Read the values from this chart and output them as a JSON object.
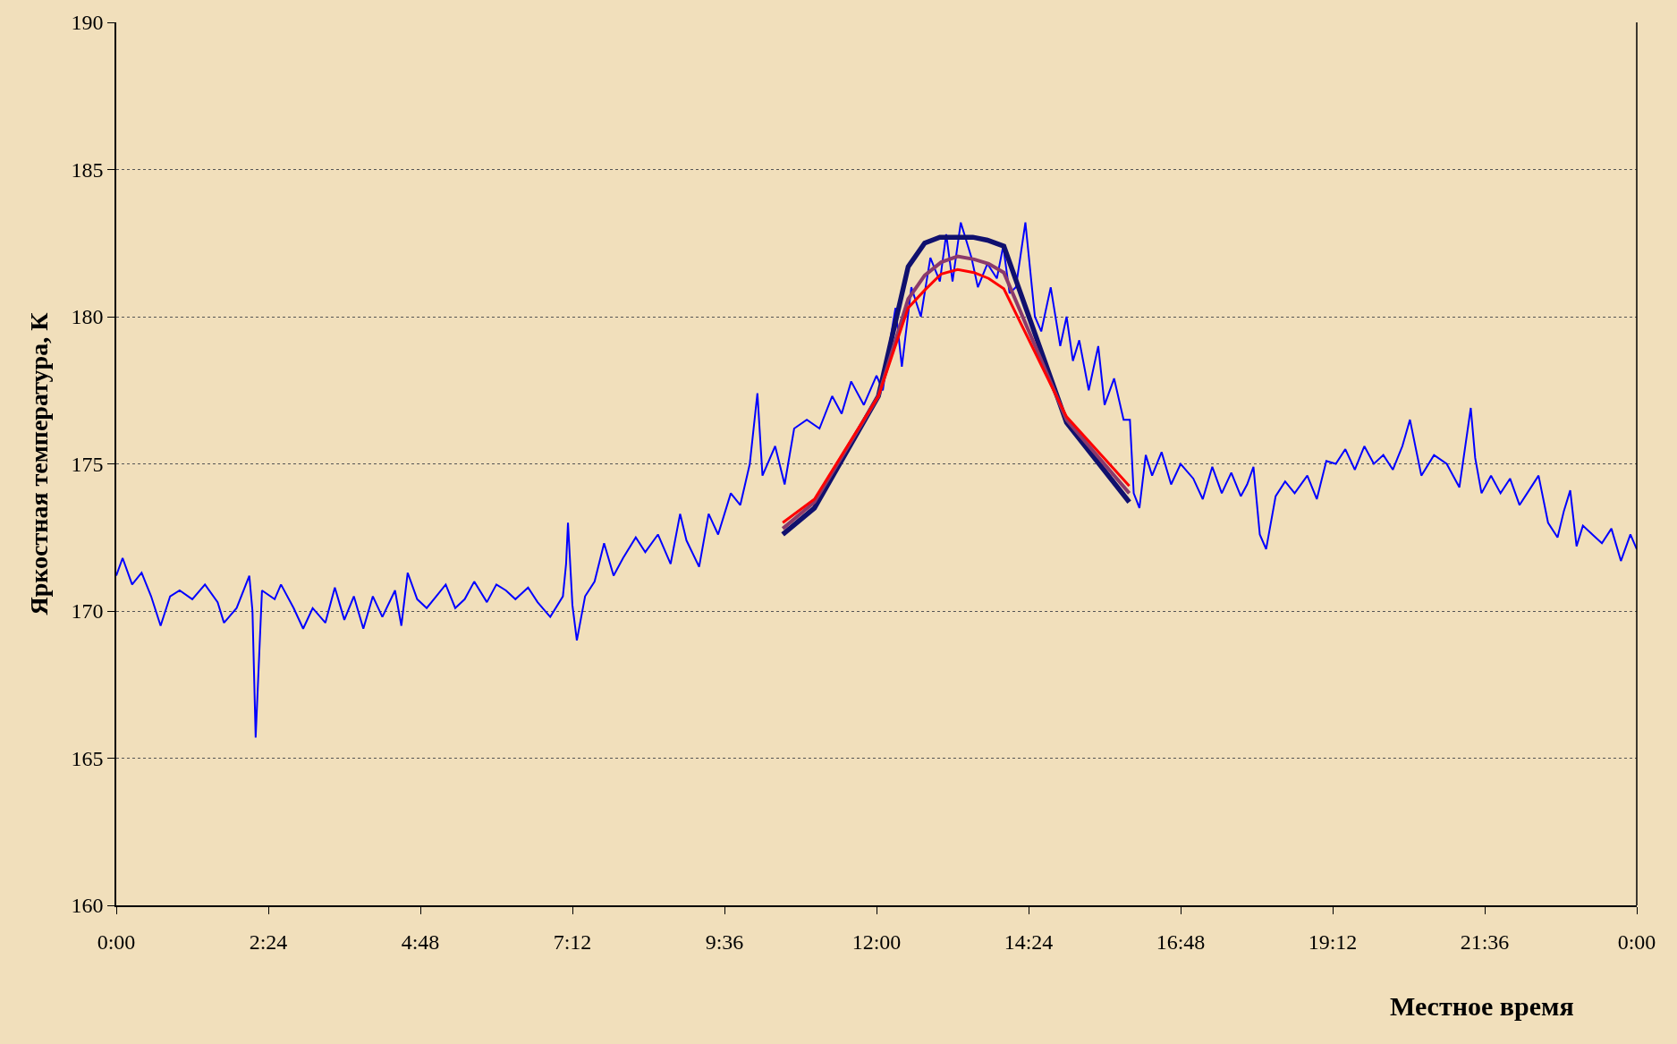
{
  "chart_data": {
    "type": "line",
    "xlabel": "Местное время",
    "ylabel": "Яркостная температура, К",
    "xlim": [
      0,
      24
    ],
    "xticks": [
      {
        "value": 0,
        "label": "0:00"
      },
      {
        "value": 2.4,
        "label": "2:24"
      },
      {
        "value": 4.8,
        "label": "4:48"
      },
      {
        "value": 7.2,
        "label": "7:12"
      },
      {
        "value": 9.6,
        "label": "9:36"
      },
      {
        "value": 12,
        "label": "12:00"
      },
      {
        "value": 14.4,
        "label": "14:24"
      },
      {
        "value": 16.8,
        "label": "16:48"
      },
      {
        "value": 19.2,
        "label": "19:12"
      },
      {
        "value": 21.6,
        "label": "21:36"
      },
      {
        "value": 24,
        "label": "0:00"
      }
    ],
    "ylim": [
      160,
      190
    ],
    "yticks": [
      160,
      165,
      170,
      175,
      180,
      185,
      190
    ],
    "grid": "y",
    "line_style": "solid",
    "marker": "none",
    "series": [
      {
        "color": "#0000ff",
        "x": [
          0.0,
          0.1,
          0.25,
          0.4,
          0.55,
          0.7,
          0.85,
          1.0,
          1.2,
          1.4,
          1.6,
          1.7,
          1.9,
          2.1,
          2.15,
          2.2,
          2.3,
          2.5,
          2.6,
          2.8,
          2.95,
          3.1,
          3.3,
          3.45,
          3.6,
          3.75,
          3.9,
          4.05,
          4.2,
          4.4,
          4.5,
          4.6,
          4.75,
          4.9,
          5.05,
          5.2,
          5.35,
          5.5,
          5.65,
          5.85,
          6.0,
          6.15,
          6.3,
          6.5,
          6.65,
          6.85,
          7.05,
          7.1,
          7.13,
          7.2,
          7.27,
          7.4,
          7.55,
          7.7,
          7.85,
          8.0,
          8.2,
          8.35,
          8.55,
          8.75,
          8.9,
          9.0,
          9.2,
          9.35,
          9.5,
          9.7,
          9.85,
          10.0,
          10.12,
          10.2,
          10.4,
          10.55,
          10.7,
          10.9,
          11.1,
          11.3,
          11.45,
          11.6,
          11.8,
          12.0,
          12.1,
          12.2,
          12.3,
          12.4,
          12.55,
          12.7,
          12.85,
          13.0,
          13.1,
          13.2,
          13.33,
          13.5,
          13.6,
          13.75,
          13.9,
          14.0,
          14.1,
          14.2,
          14.35,
          14.5,
          14.6,
          14.75,
          14.9,
          15.0,
          15.1,
          15.2,
          15.35,
          15.5,
          15.6,
          15.75,
          15.9,
          16.0,
          16.06,
          16.15,
          16.25,
          16.35,
          16.5,
          16.65,
          16.8,
          17.0,
          17.15,
          17.3,
          17.45,
          17.6,
          17.75,
          17.85,
          17.95,
          18.05,
          18.15,
          18.3,
          18.45,
          18.6,
          18.8,
          18.95,
          19.1,
          19.25,
          19.4,
          19.55,
          19.7,
          19.85,
          20.0,
          20.15,
          20.3,
          20.42,
          20.6,
          20.8,
          21.0,
          21.2,
          21.38,
          21.45,
          21.55,
          21.7,
          21.85,
          22.0,
          22.15,
          22.3,
          22.45,
          22.6,
          22.75,
          22.85,
          22.95,
          23.05,
          23.15,
          23.3,
          23.45,
          23.6,
          23.75,
          23.9,
          24.0
        ],
        "values": [
          171.2,
          171.8,
          170.9,
          171.3,
          170.5,
          169.5,
          170.5,
          170.7,
          170.4,
          170.9,
          170.3,
          169.6,
          170.1,
          171.2,
          170.0,
          165.7,
          170.7,
          170.4,
          170.9,
          170.1,
          169.4,
          170.1,
          169.6,
          170.8,
          169.7,
          170.5,
          169.4,
          170.5,
          169.8,
          170.7,
          169.5,
          171.3,
          170.4,
          170.1,
          170.5,
          170.9,
          170.1,
          170.4,
          171.0,
          170.3,
          170.9,
          170.7,
          170.4,
          170.8,
          170.3,
          169.8,
          170.5,
          171.6,
          173.0,
          170.2,
          169.0,
          170.5,
          171.0,
          172.3,
          171.2,
          171.8,
          172.5,
          172.0,
          172.6,
          171.6,
          173.3,
          172.4,
          171.5,
          173.3,
          172.6,
          174.0,
          173.6,
          175.0,
          177.4,
          174.6,
          175.6,
          174.3,
          176.2,
          176.5,
          176.2,
          177.3,
          176.7,
          177.8,
          177.0,
          178.0,
          177.5,
          179.0,
          180.3,
          178.3,
          181.0,
          180.0,
          182.0,
          181.2,
          182.8,
          181.2,
          183.2,
          182.0,
          181.0,
          181.8,
          181.3,
          182.4,
          180.8,
          181.0,
          183.2,
          180.0,
          179.5,
          181.0,
          179.0,
          180.0,
          178.5,
          179.2,
          177.5,
          179.0,
          177.0,
          177.9,
          176.5,
          176.5,
          174.0,
          173.5,
          175.3,
          174.6,
          175.4,
          174.3,
          175.0,
          174.5,
          173.8,
          174.9,
          174.0,
          174.7,
          173.9,
          174.3,
          174.9,
          172.6,
          172.1,
          173.9,
          174.4,
          174.0,
          174.6,
          173.8,
          175.1,
          175.0,
          175.5,
          174.8,
          175.6,
          175.0,
          175.3,
          174.8,
          175.6,
          176.5,
          174.6,
          175.3,
          175.0,
          174.2,
          176.9,
          175.2,
          174.0,
          174.6,
          174.0,
          174.5,
          173.6,
          174.1,
          174.6,
          173.0,
          172.5,
          173.4,
          174.1,
          172.2,
          172.9,
          172.6,
          172.3,
          172.8,
          171.7,
          172.6,
          172.1
        ]
      },
      {
        "color": "#10106e",
        "x": [
          10.52,
          11.02,
          12.03,
          12.5,
          12.76,
          13.0,
          13.52,
          13.75,
          14.01,
          15.0,
          15.99
        ],
        "values": [
          172.6,
          173.5,
          177.3,
          181.7,
          182.5,
          182.7,
          182.7,
          182.6,
          182.4,
          176.4,
          173.7
        ]
      },
      {
        "color": "#8b3a6b",
        "x": [
          10.52,
          11.02,
          12.03,
          12.5,
          12.76,
          13.02,
          13.28,
          13.54,
          13.77,
          14.01,
          15.0,
          15.99
        ],
        "values": [
          172.8,
          173.7,
          177.3,
          180.6,
          181.4,
          181.85,
          182.05,
          181.95,
          181.8,
          181.5,
          176.5,
          174.0
        ]
      },
      {
        "color": "#ff0000",
        "x": [
          10.52,
          11.02,
          12.03,
          12.5,
          12.76,
          13.02,
          13.28,
          13.54,
          13.77,
          14.01,
          15.0,
          15.99
        ],
        "values": [
          173.0,
          173.8,
          177.3,
          180.3,
          180.9,
          181.45,
          181.6,
          181.5,
          181.3,
          180.95,
          176.6,
          174.25
        ]
      }
    ]
  }
}
